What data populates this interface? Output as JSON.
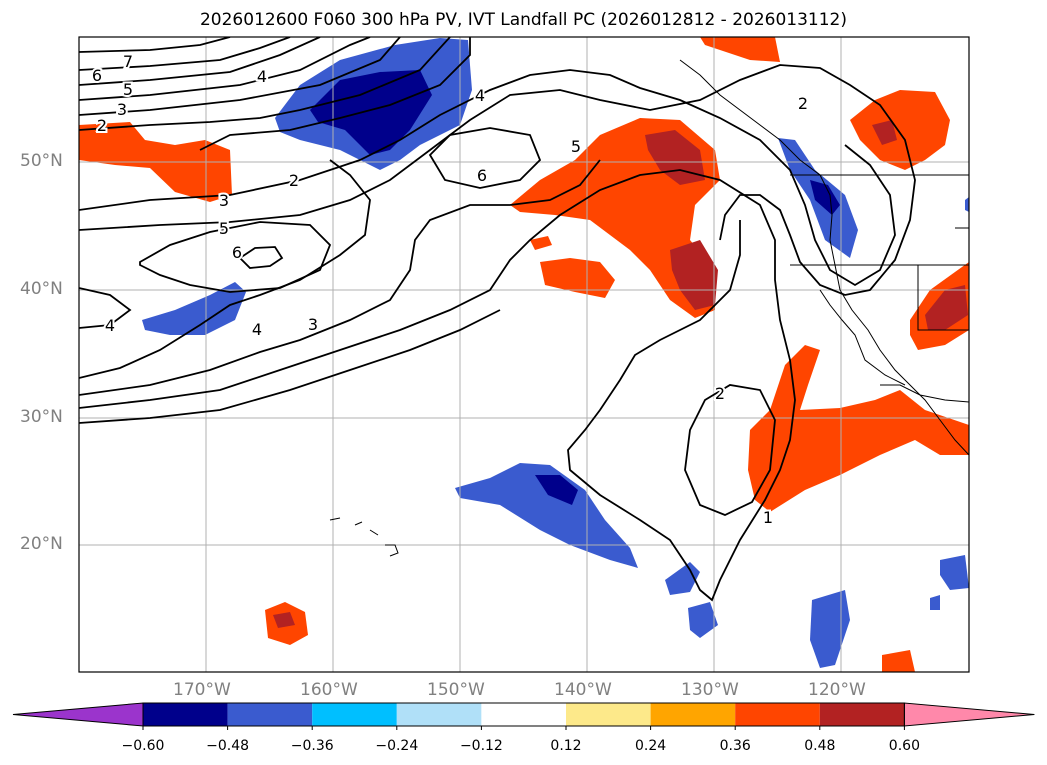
{
  "title": "2026012600 F060 300 hPa PV, IVT Landfall PC (2026012812 - 2026013112)",
  "lat_labels": [
    "50°N",
    "40°N",
    "30°N",
    "20°N"
  ],
  "lon_labels": [
    "170°W",
    "160°W",
    "150°W",
    "140°W",
    "130°W",
    "120°W"
  ],
  "contour_labels": [
    "7",
    "6",
    "5",
    "4",
    "3",
    "2",
    "3",
    "2",
    "5",
    "6",
    "4",
    "4",
    "3",
    "4",
    "6",
    "5",
    "2",
    "2",
    "1"
  ],
  "colorbar": {
    "ticks": [
      "−0.60",
      "−0.48",
      "−0.36",
      "−0.24",
      "−0.12",
      "0.12",
      "0.24",
      "0.36",
      "0.48",
      "0.60"
    ],
    "colors": [
      "#9b34cc",
      "#00008b",
      "#3a5bcf",
      "#00bfff",
      "#b0e0f8",
      "#ffffff",
      "#fde98a",
      "#ffa500",
      "#ff4500",
      "#b22222",
      "#ff88aa"
    ]
  },
  "map_extent": {
    "lon": [
      -180,
      -110
    ],
    "lat": [
      10,
      60
    ]
  }
}
